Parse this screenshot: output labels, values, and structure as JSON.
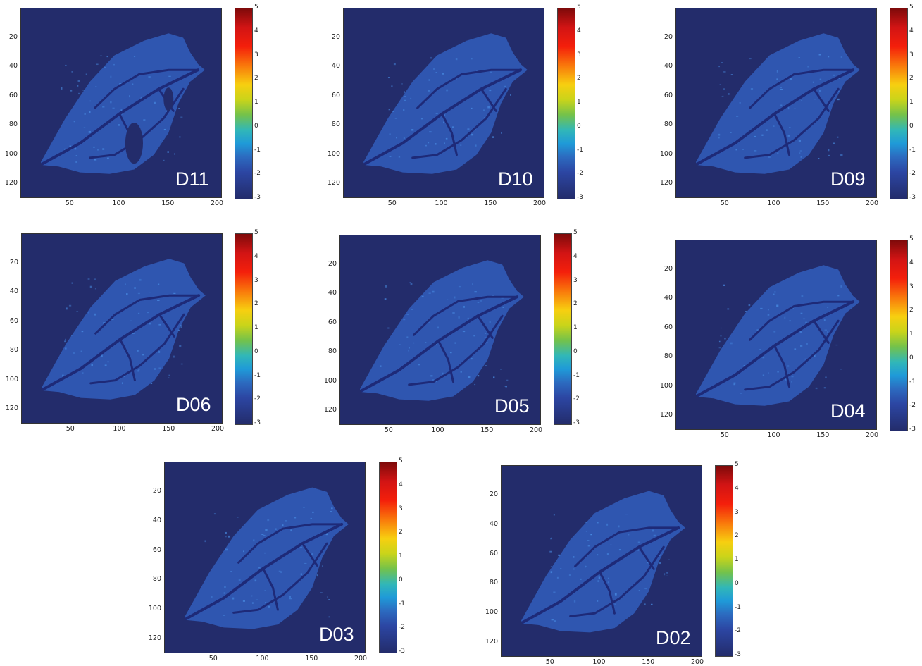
{
  "colors": {
    "background": "#232c6b",
    "leaf": "#2f56b0",
    "vein": "#1e2a78",
    "speck": "#4a8fe6",
    "colormap": [
      "#7e0a0a",
      "#d21414",
      "#f9780b",
      "#f7cf10",
      "#73c24b",
      "#31b7b8",
      "#1f9ad8",
      "#2c46a3",
      "#232c6b"
    ]
  },
  "chart_data": [
    {
      "type": "heatmap",
      "label": "D11",
      "colormap": "jet",
      "clim": [
        -3,
        5
      ],
      "xlim": [
        0,
        205
      ],
      "ylim": [
        130,
        0
      ],
      "xticks": [
        "50",
        "100",
        "150",
        "200"
      ],
      "yticks": [
        "20",
        "40",
        "60",
        "80",
        "100",
        "120"
      ],
      "cticks": [
        "5",
        "4",
        "3",
        "2",
        "1",
        "0",
        "-1",
        "-2",
        "-3"
      ],
      "leaf_mean_value": -1.8,
      "holes": 2
    },
    {
      "type": "heatmap",
      "label": "D10",
      "colormap": "jet",
      "clim": [
        -3,
        5
      ],
      "xlim": [
        0,
        205
      ],
      "ylim": [
        130,
        0
      ],
      "xticks": [
        "50",
        "100",
        "150",
        "200"
      ],
      "yticks": [
        "20",
        "40",
        "60",
        "80",
        "100",
        "120"
      ],
      "cticks": [
        "5",
        "4",
        "3",
        "2",
        "1",
        "0",
        "-1",
        "-2",
        "-3"
      ],
      "leaf_mean_value": -1.9,
      "holes": 0
    },
    {
      "type": "heatmap",
      "label": "D09",
      "colormap": "jet",
      "clim": [
        -3,
        5
      ],
      "xlim": [
        0,
        205
      ],
      "ylim": [
        130,
        0
      ],
      "xticks": [
        "50",
        "100",
        "150",
        "200"
      ],
      "yticks": [
        "20",
        "40",
        "60",
        "80",
        "100",
        "120"
      ],
      "cticks": [
        "5",
        "4",
        "3",
        "2",
        "1",
        "0",
        "-1",
        "-2",
        "-3"
      ],
      "leaf_mean_value": -1.9,
      "holes": 0
    },
    {
      "type": "heatmap",
      "label": "D06",
      "colormap": "jet",
      "clim": [
        -3,
        5
      ],
      "xlim": [
        0,
        205
      ],
      "ylim": [
        130,
        0
      ],
      "xticks": [
        "50",
        "100",
        "150",
        "200"
      ],
      "yticks": [
        "20",
        "40",
        "60",
        "80",
        "100",
        "120"
      ],
      "cticks": [
        "5",
        "4",
        "3",
        "2",
        "1",
        "0",
        "-1",
        "-2",
        "-3"
      ],
      "leaf_mean_value": -2.0,
      "holes": 0
    },
    {
      "type": "heatmap",
      "label": "D05",
      "colormap": "jet",
      "clim": [
        -3,
        5
      ],
      "xlim": [
        0,
        205
      ],
      "ylim": [
        130,
        0
      ],
      "xticks": [
        "50",
        "100",
        "150",
        "200"
      ],
      "yticks": [
        "20",
        "40",
        "60",
        "80",
        "100",
        "120"
      ],
      "cticks": [
        "5",
        "4",
        "3",
        "2",
        "1",
        "0",
        "-1",
        "-2",
        "-3"
      ],
      "leaf_mean_value": -2.1,
      "holes": 0
    },
    {
      "type": "heatmap",
      "label": "D04",
      "colormap": "jet",
      "clim": [
        -3,
        5
      ],
      "xlim": [
        0,
        205
      ],
      "ylim": [
        130,
        0
      ],
      "xticks": [
        "50",
        "100",
        "150",
        "200"
      ],
      "yticks": [
        "20",
        "40",
        "60",
        "80",
        "100",
        "120"
      ],
      "cticks": [
        "5",
        "4",
        "3",
        "2",
        "1",
        "0",
        "-1",
        "-2",
        "-3"
      ],
      "leaf_mean_value": -2.1,
      "holes": 0
    },
    {
      "type": "heatmap",
      "label": "D03",
      "colormap": "jet",
      "clim": [
        -3,
        5
      ],
      "xlim": [
        0,
        205
      ],
      "ylim": [
        130,
        0
      ],
      "xticks": [
        "50",
        "100",
        "150",
        "200"
      ],
      "yticks": [
        "20",
        "40",
        "60",
        "80",
        "100",
        "120"
      ],
      "cticks": [
        "5",
        "4",
        "3",
        "2",
        "1",
        "0",
        "-1",
        "-2",
        "-3"
      ],
      "leaf_mean_value": -2.2,
      "holes": 0
    },
    {
      "type": "heatmap",
      "label": "D02",
      "colormap": "jet",
      "clim": [
        -3,
        5
      ],
      "xlim": [
        0,
        205
      ],
      "ylim": [
        130,
        0
      ],
      "xticks": [
        "50",
        "100",
        "150",
        "200"
      ],
      "yticks": [
        "20",
        "40",
        "60",
        "80",
        "100",
        "120"
      ],
      "cticks": [
        "5",
        "4",
        "3",
        "2",
        "1",
        "0",
        "-1",
        "-2",
        "-3"
      ],
      "leaf_mean_value": -2.3,
      "holes": 0
    }
  ]
}
